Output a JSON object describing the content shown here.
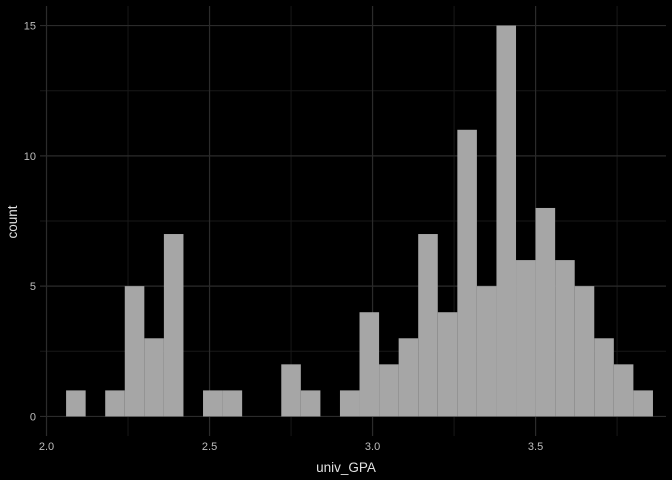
{
  "chart_data": {
    "type": "bar",
    "title": "",
    "xlabel": "univ_GPA",
    "ylabel": "count",
    "xlim": [
      1.98,
      3.9
    ],
    "ylim": [
      -0.75,
      15.75
    ],
    "x_ticks": [
      "2.0",
      "2.5",
      "3.0",
      "3.5"
    ],
    "y_ticks": [
      "0",
      "5",
      "10",
      "15"
    ],
    "grid": true,
    "bin_width": 0.06,
    "bins": [
      {
        "start": 2.06,
        "count": 1
      },
      {
        "start": 2.12,
        "count": 0
      },
      {
        "start": 2.18,
        "count": 1
      },
      {
        "start": 2.24,
        "count": 5
      },
      {
        "start": 2.3,
        "count": 3
      },
      {
        "start": 2.36,
        "count": 7
      },
      {
        "start": 2.42,
        "count": 0
      },
      {
        "start": 2.48,
        "count": 1
      },
      {
        "start": 2.54,
        "count": 1
      },
      {
        "start": 2.6,
        "count": 0
      },
      {
        "start": 2.66,
        "count": 0
      },
      {
        "start": 2.72,
        "count": 2
      },
      {
        "start": 2.78,
        "count": 1
      },
      {
        "start": 2.84,
        "count": 0
      },
      {
        "start": 2.9,
        "count": 1
      },
      {
        "start": 2.96,
        "count": 4
      },
      {
        "start": 3.02,
        "count": 2
      },
      {
        "start": 3.08,
        "count": 3
      },
      {
        "start": 3.14,
        "count": 7
      },
      {
        "start": 3.2,
        "count": 4
      },
      {
        "start": 3.26,
        "count": 11
      },
      {
        "start": 3.32,
        "count": 5
      },
      {
        "start": 3.38,
        "count": 15
      },
      {
        "start": 3.44,
        "count": 6
      },
      {
        "start": 3.5,
        "count": 8
      },
      {
        "start": 3.56,
        "count": 6
      },
      {
        "start": 3.62,
        "count": 5
      },
      {
        "start": 3.68,
        "count": 3
      },
      {
        "start": 3.74,
        "count": 2
      },
      {
        "start": 3.8,
        "count": 1
      }
    ],
    "colors": {
      "background": "#000000",
      "bar_fill": "#a6a6a6",
      "grid_major": "#2b2b2b",
      "grid_minor": "#181818"
    }
  }
}
